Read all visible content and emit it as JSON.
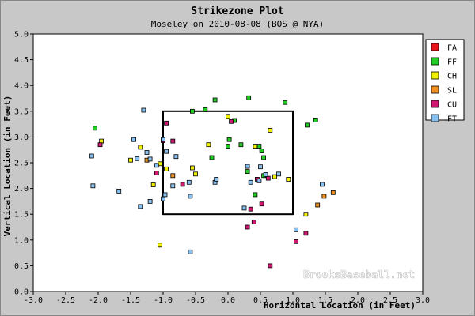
{
  "chart_data": {
    "type": "scatter",
    "title": "Strikezone Plot",
    "subtitle": "Moseley on 2010-08-08 (BOS @ NYA)",
    "xlabel": "Horizontal Location (in Feet)",
    "ylabel": "Vertical Location (in Feet)",
    "xlim": [
      -3.0,
      3.0
    ],
    "ylim": [
      0.0,
      5.0
    ],
    "xticks": [
      "-3.0",
      "-2.5",
      "-2.0",
      "-1.5",
      "-1.0",
      "-0.5",
      "0.0",
      "0.5",
      "1.0",
      "1.5",
      "2.0",
      "2.5",
      "3.0"
    ],
    "yticks": [
      "0.0",
      "0.5",
      "1.0",
      "1.5",
      "2.0",
      "2.5",
      "3.0",
      "3.5",
      "4.0",
      "4.5",
      "5.0"
    ],
    "grid": false,
    "legend_position": "top-right",
    "strike_zone": {
      "x": [
        -1.0,
        1.0
      ],
      "y": [
        1.5,
        3.5
      ]
    },
    "watermark": "BrooksBaseball.net",
    "series": [
      {
        "name": "FA",
        "color": "#e8141c",
        "points": []
      },
      {
        "name": "FF",
        "color": "#22cc22",
        "points": [
          [
            -2.05,
            3.17
          ],
          [
            -0.2,
            3.72
          ],
          [
            0.32,
            3.76
          ],
          [
            0.88,
            3.67
          ],
          [
            1.22,
            3.23
          ],
          [
            1.35,
            3.33
          ],
          [
            -0.55,
            3.5
          ],
          [
            -0.35,
            3.53
          ],
          [
            0.1,
            3.32
          ],
          [
            0.0,
            2.82
          ],
          [
            0.02,
            2.95
          ],
          [
            0.2,
            2.85
          ],
          [
            0.48,
            2.82
          ],
          [
            0.52,
            2.73
          ],
          [
            0.55,
            2.6
          ],
          [
            0.3,
            2.33
          ],
          [
            0.55,
            2.25
          ],
          [
            0.42,
            1.88
          ],
          [
            -0.25,
            2.6
          ]
        ]
      },
      {
        "name": "CH",
        "color": "#f0f000",
        "points": [
          [
            -1.95,
            2.92
          ],
          [
            -1.5,
            2.55
          ],
          [
            -1.05,
            2.48
          ],
          [
            -0.95,
            2.38
          ],
          [
            -0.55,
            2.4
          ],
          [
            -0.5,
            2.28
          ],
          [
            -0.3,
            2.85
          ],
          [
            0.0,
            3.4
          ],
          [
            0.65,
            3.13
          ],
          [
            0.42,
            2.82
          ],
          [
            0.72,
            2.23
          ],
          [
            0.93,
            2.18
          ],
          [
            1.2,
            1.5
          ],
          [
            -1.15,
            2.07
          ],
          [
            -1.05,
            0.9
          ],
          [
            -1.35,
            2.8
          ]
        ]
      },
      {
        "name": "SL",
        "color": "#f09020",
        "points": [
          [
            -1.25,
            2.55
          ],
          [
            -0.85,
            2.25
          ],
          [
            1.38,
            1.68
          ],
          [
            1.48,
            1.85
          ],
          [
            1.62,
            1.92
          ]
        ]
      },
      {
        "name": "CU",
        "color": "#d01870",
        "points": [
          [
            -1.97,
            2.85
          ],
          [
            -1.1,
            2.3
          ],
          [
            -1.0,
            2.93
          ],
          [
            -0.95,
            3.27
          ],
          [
            -0.85,
            2.92
          ],
          [
            -0.7,
            2.08
          ],
          [
            0.05,
            3.3
          ],
          [
            0.45,
            2.18
          ],
          [
            0.52,
            1.7
          ],
          [
            0.62,
            2.2
          ],
          [
            0.35,
            1.6
          ],
          [
            0.3,
            1.25
          ],
          [
            0.4,
            1.35
          ],
          [
            1.05,
            0.97
          ],
          [
            1.2,
            1.13
          ],
          [
            0.65,
            0.5
          ]
        ]
      },
      {
        "name": "FT",
        "color": "#88c0f0",
        "points": [
          [
            -1.3,
            3.52
          ],
          [
            -1.45,
            2.95
          ],
          [
            -1.4,
            2.58
          ],
          [
            -1.2,
            2.57
          ],
          [
            -1.0,
            2.95
          ],
          [
            -0.95,
            2.72
          ],
          [
            -0.8,
            2.62
          ],
          [
            -1.1,
            2.45
          ],
          [
            -1.25,
            2.7
          ],
          [
            -0.6,
            2.12
          ],
          [
            -0.2,
            2.12
          ],
          [
            -0.18,
            2.18
          ],
          [
            -0.85,
            2.05
          ],
          [
            -0.97,
            1.88
          ],
          [
            -1.0,
            1.8
          ],
          [
            -1.2,
            1.75
          ],
          [
            -1.35,
            1.65
          ],
          [
            -0.58,
            1.85
          ],
          [
            0.25,
            1.62
          ],
          [
            0.3,
            2.43
          ],
          [
            0.5,
            2.42
          ],
          [
            0.48,
            2.15
          ],
          [
            0.58,
            2.27
          ],
          [
            0.78,
            2.28
          ],
          [
            1.45,
            2.08
          ],
          [
            -2.1,
            2.63
          ],
          [
            -2.08,
            2.05
          ],
          [
            -1.68,
            1.95
          ],
          [
            1.05,
            1.2
          ],
          [
            -0.58,
            0.77
          ],
          [
            0.35,
            2.12
          ]
        ]
      }
    ]
  }
}
